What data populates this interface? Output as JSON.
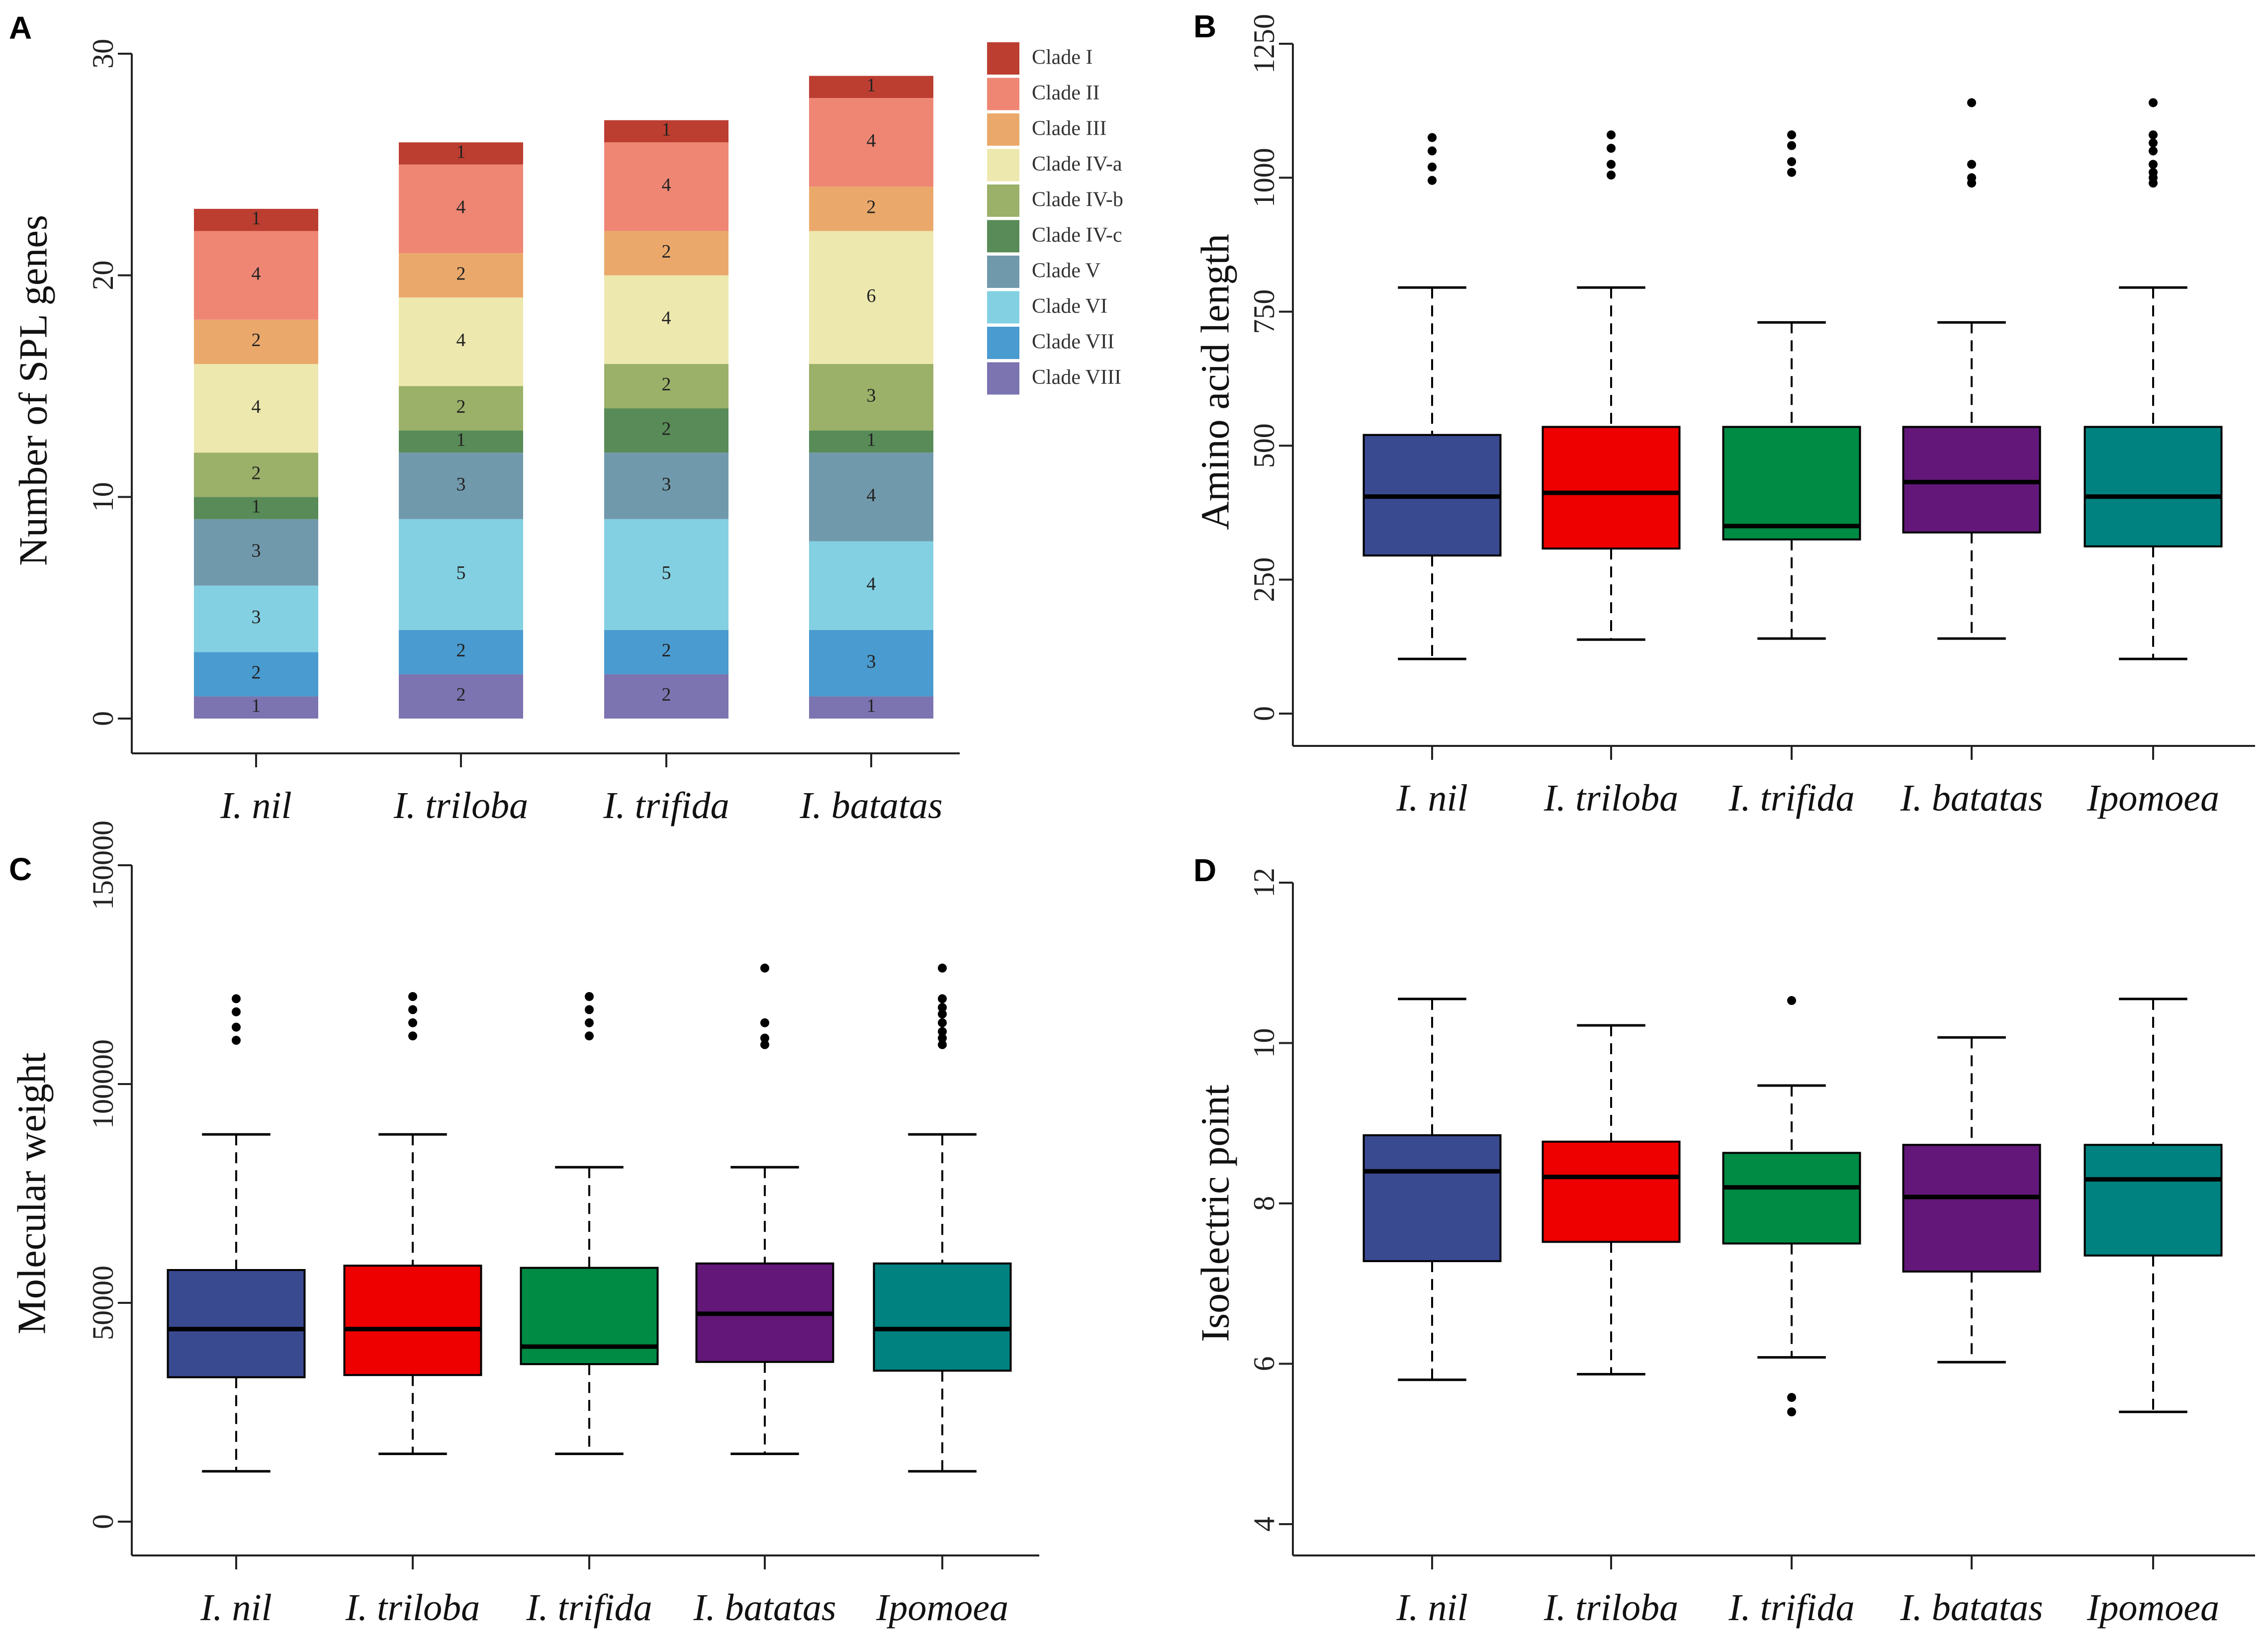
{
  "chart_data": [
    {
      "panel": "A",
      "type": "bar",
      "stacked": true,
      "ylabel": "Number of SPL genes",
      "ylim": [
        0,
        30
      ],
      "yticks": [
        0,
        10,
        20,
        30
      ],
      "categories": [
        "I. nil",
        "I. triloba",
        "I. trifida",
        "I. batatas"
      ],
      "series": [
        {
          "name": "Clade VIII",
          "color": "#7b74b0",
          "values": [
            1,
            2,
            2,
            1
          ]
        },
        {
          "name": "Clade VII",
          "color": "#4a9bcf",
          "values": [
            2,
            2,
            2,
            3
          ]
        },
        {
          "name": "Clade VI",
          "color": "#83d0e2",
          "values": [
            3,
            5,
            5,
            4
          ]
        },
        {
          "name": "Clade V",
          "color": "#7199ac",
          "values": [
            3,
            3,
            3,
            4
          ]
        },
        {
          "name": "Clade IV-c",
          "color": "#588b57",
          "values": [
            1,
            1,
            2,
            1
          ]
        },
        {
          "name": "Clade IV-b",
          "color": "#9bb068",
          "values": [
            2,
            2,
            2,
            3
          ]
        },
        {
          "name": "Clade IV-a",
          "color": "#ede8ae",
          "values": [
            4,
            4,
            4,
            6
          ]
        },
        {
          "name": "Clade III",
          "color": "#eaa96b",
          "values": [
            2,
            2,
            2,
            2
          ]
        },
        {
          "name": "Clade II",
          "color": "#ef8674",
          "values": [
            4,
            4,
            4,
            4
          ]
        },
        {
          "name": "Clade I",
          "color": "#bc3e31",
          "values": [
            1,
            1,
            1,
            1
          ]
        }
      ],
      "legend": [
        "Clade I",
        "Clade II",
        "Clade III",
        "Clade IV-a",
        "Clade IV-b",
        "Clade IV-c",
        "Clade V",
        "Clade VI",
        "Clade VII",
        "Clade VIII"
      ],
      "legend_position": "top-right"
    },
    {
      "panel": "B",
      "type": "boxplot",
      "ylabel": "Amino acid length",
      "ylim": [
        0,
        1250
      ],
      "yticks": [
        0,
        250,
        500,
        750,
        1000,
        1250
      ],
      "categories": [
        "I. nil",
        "I. triloba",
        "I. trifida",
        "I. batatas",
        "Ipomoea"
      ],
      "boxes": [
        {
          "color": "#3a4a91",
          "wlo": 102,
          "q1": 295,
          "med": 405,
          "q3": 520,
          "whi": 795,
          "outliers": [
            995,
            1020,
            1050,
            1075
          ]
        },
        {
          "color": "#ee0000",
          "wlo": 138,
          "q1": 308,
          "med": 412,
          "q3": 535,
          "whi": 795,
          "outliers": [
            1005,
            1025,
            1055,
            1080
          ]
        },
        {
          "color": "#008b45",
          "wlo": 140,
          "q1": 325,
          "med": 350,
          "q3": 535,
          "whi": 730,
          "outliers": [
            1010,
            1030,
            1060,
            1080
          ]
        },
        {
          "color": "#631879",
          "wlo": 140,
          "q1": 338,
          "med": 432,
          "q3": 535,
          "whi": 730,
          "outliers": [
            990,
            1000,
            1025,
            1140
          ]
        },
        {
          "color": "#008280",
          "wlo": 102,
          "q1": 312,
          "med": 405,
          "q3": 535,
          "whi": 795,
          "outliers": [
            990,
            1000,
            1010,
            1025,
            1050,
            1065,
            1080,
            1140
          ]
        }
      ]
    },
    {
      "panel": "C",
      "type": "boxplot",
      "ylabel": "Molecular weight",
      "ylim": [
        0,
        150000
      ],
      "yticks": [
        0,
        50000,
        100000,
        150000
      ],
      "categories": [
        "I. nil",
        "I. triloba",
        "I. trifida",
        "I. batatas",
        "Ipomoea"
      ],
      "boxes": [
        {
          "color": "#3a4a91",
          "wlo": 11500,
          "q1": 33000,
          "med": 44000,
          "q3": 57500,
          "whi": 88500,
          "outliers": [
            110000,
            113000,
            116500,
            119500
          ]
        },
        {
          "color": "#ee0000",
          "wlo": 15500,
          "q1": 33500,
          "med": 44000,
          "q3": 58500,
          "whi": 88500,
          "outliers": [
            111000,
            114000,
            117000,
            120000
          ]
        },
        {
          "color": "#008b45",
          "wlo": 15500,
          "q1": 36000,
          "med": 40000,
          "q3": 58000,
          "whi": 81000,
          "outliers": [
            111000,
            114000,
            117000,
            120000
          ]
        },
        {
          "color": "#631879",
          "wlo": 15500,
          "q1": 36500,
          "med": 47500,
          "q3": 59000,
          "whi": 81000,
          "outliers": [
            109000,
            110500,
            114000,
            126500
          ]
        },
        {
          "color": "#008280",
          "wlo": 11500,
          "q1": 34500,
          "med": 44000,
          "q3": 59000,
          "whi": 88500,
          "outliers": [
            109000,
            110500,
            112000,
            114000,
            116000,
            117500,
            119500,
            126500
          ]
        }
      ]
    },
    {
      "panel": "D",
      "type": "boxplot",
      "ylabel": "Isoelectric point",
      "ylim": [
        4,
        12
      ],
      "yticks": [
        4,
        6,
        8,
        10,
        12
      ],
      "categories": [
        "I. nil",
        "I. triloba",
        "I. trifida",
        "I. batatas",
        "Ipomoea"
      ],
      "boxes": [
        {
          "color": "#3a4a91",
          "wlo": 5.8,
          "q1": 7.28,
          "med": 8.4,
          "q3": 8.85,
          "whi": 10.55,
          "outliers": []
        },
        {
          "color": "#ee0000",
          "wlo": 5.87,
          "q1": 7.52,
          "med": 8.33,
          "q3": 8.77,
          "whi": 10.22,
          "outliers": []
        },
        {
          "color": "#008b45",
          "wlo": 6.08,
          "q1": 7.5,
          "med": 8.2,
          "q3": 8.63,
          "whi": 9.47,
          "outliers": [
            5.4,
            5.58,
            10.53
          ]
        },
        {
          "color": "#631879",
          "wlo": 6.02,
          "q1": 7.15,
          "med": 8.08,
          "q3": 8.73,
          "whi": 10.07,
          "outliers": []
        },
        {
          "color": "#008280",
          "wlo": 5.4,
          "q1": 7.35,
          "med": 8.3,
          "q3": 8.73,
          "whi": 10.55,
          "outliers": []
        }
      ]
    }
  ]
}
